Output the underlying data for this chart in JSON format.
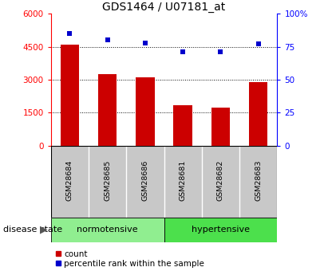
{
  "title": "GDS1464 / U07181_at",
  "categories": [
    "GSM28684",
    "GSM28685",
    "GSM28686",
    "GSM28681",
    "GSM28682",
    "GSM28683"
  ],
  "counts": [
    4600,
    3250,
    3100,
    1850,
    1750,
    2900
  ],
  "percentiles": [
    85,
    80,
    78,
    71,
    71,
    77
  ],
  "left_ylim": [
    0,
    6000
  ],
  "right_ylim": [
    0,
    100
  ],
  "left_yticks": [
    0,
    1500,
    3000,
    4500,
    6000
  ],
  "right_yticks": [
    0,
    25,
    50,
    75,
    100
  ],
  "right_yticklabels": [
    "0",
    "25",
    "50",
    "75",
    "100%"
  ],
  "bar_color": "#cc0000",
  "scatter_color": "#0000cc",
  "group_label": "disease state",
  "normo_label": "normotensive",
  "hyper_label": "hypertensive",
  "legend_count": "count",
  "legend_percentile": "percentile rank within the sample",
  "bg_color_normo": "#90ee90",
  "bg_color_hyper": "#4ce04c",
  "tick_area_color": "#c8c8c8",
  "title_fontsize": 10,
  "tick_fontsize": 7.5,
  "label_fontsize": 8
}
